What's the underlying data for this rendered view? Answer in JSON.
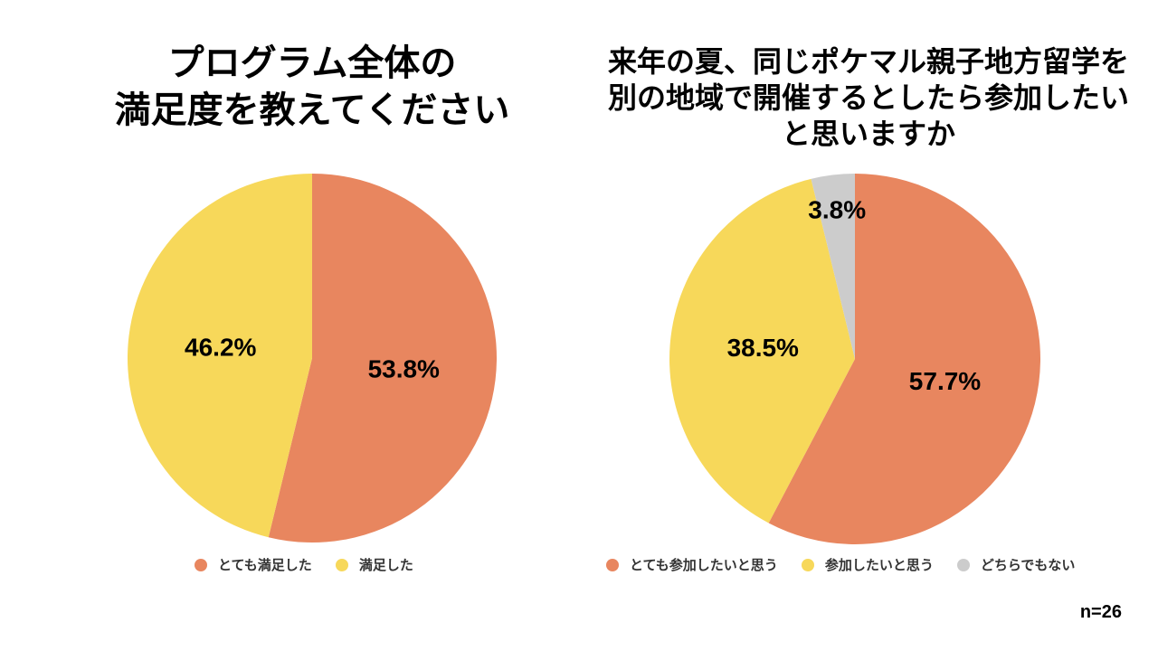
{
  "colors": {
    "orange": "#E8865F",
    "yellow": "#F7D85A",
    "gray": "#CCCCCC"
  },
  "sample_size": "n=26",
  "chart_data": [
    {
      "type": "pie",
      "title": "プログラム全体の満足度を教えてください",
      "title_lines": [
        "プログラム全体の",
        "満足度を教えてください"
      ],
      "categories": [
        "とても満足した",
        "満足した"
      ],
      "values": [
        53.8,
        46.2
      ],
      "value_labels": [
        "53.8%",
        "46.2%"
      ],
      "colors": [
        "#E8865F",
        "#F7D85A"
      ],
      "legend_position": "bottom"
    },
    {
      "type": "pie",
      "title": "来年の夏、同じポケマル親子地方留学を別の地域で開催するとしたら参加したいと思いますか",
      "title_lines": [
        "来年の夏、同じポケマル親子地方留学を",
        "別の地域で開催するとしたら参加したい",
        "と思いますか"
      ],
      "categories": [
        "とても参加したいと思う",
        "参加したいと思う",
        "どちらでもない"
      ],
      "values": [
        57.7,
        38.5,
        3.8
      ],
      "value_labels": [
        "57.7%",
        "38.5%",
        "3.8%"
      ],
      "colors": [
        "#E8865F",
        "#F7D85A",
        "#CCCCCC"
      ],
      "legend_position": "bottom"
    }
  ]
}
